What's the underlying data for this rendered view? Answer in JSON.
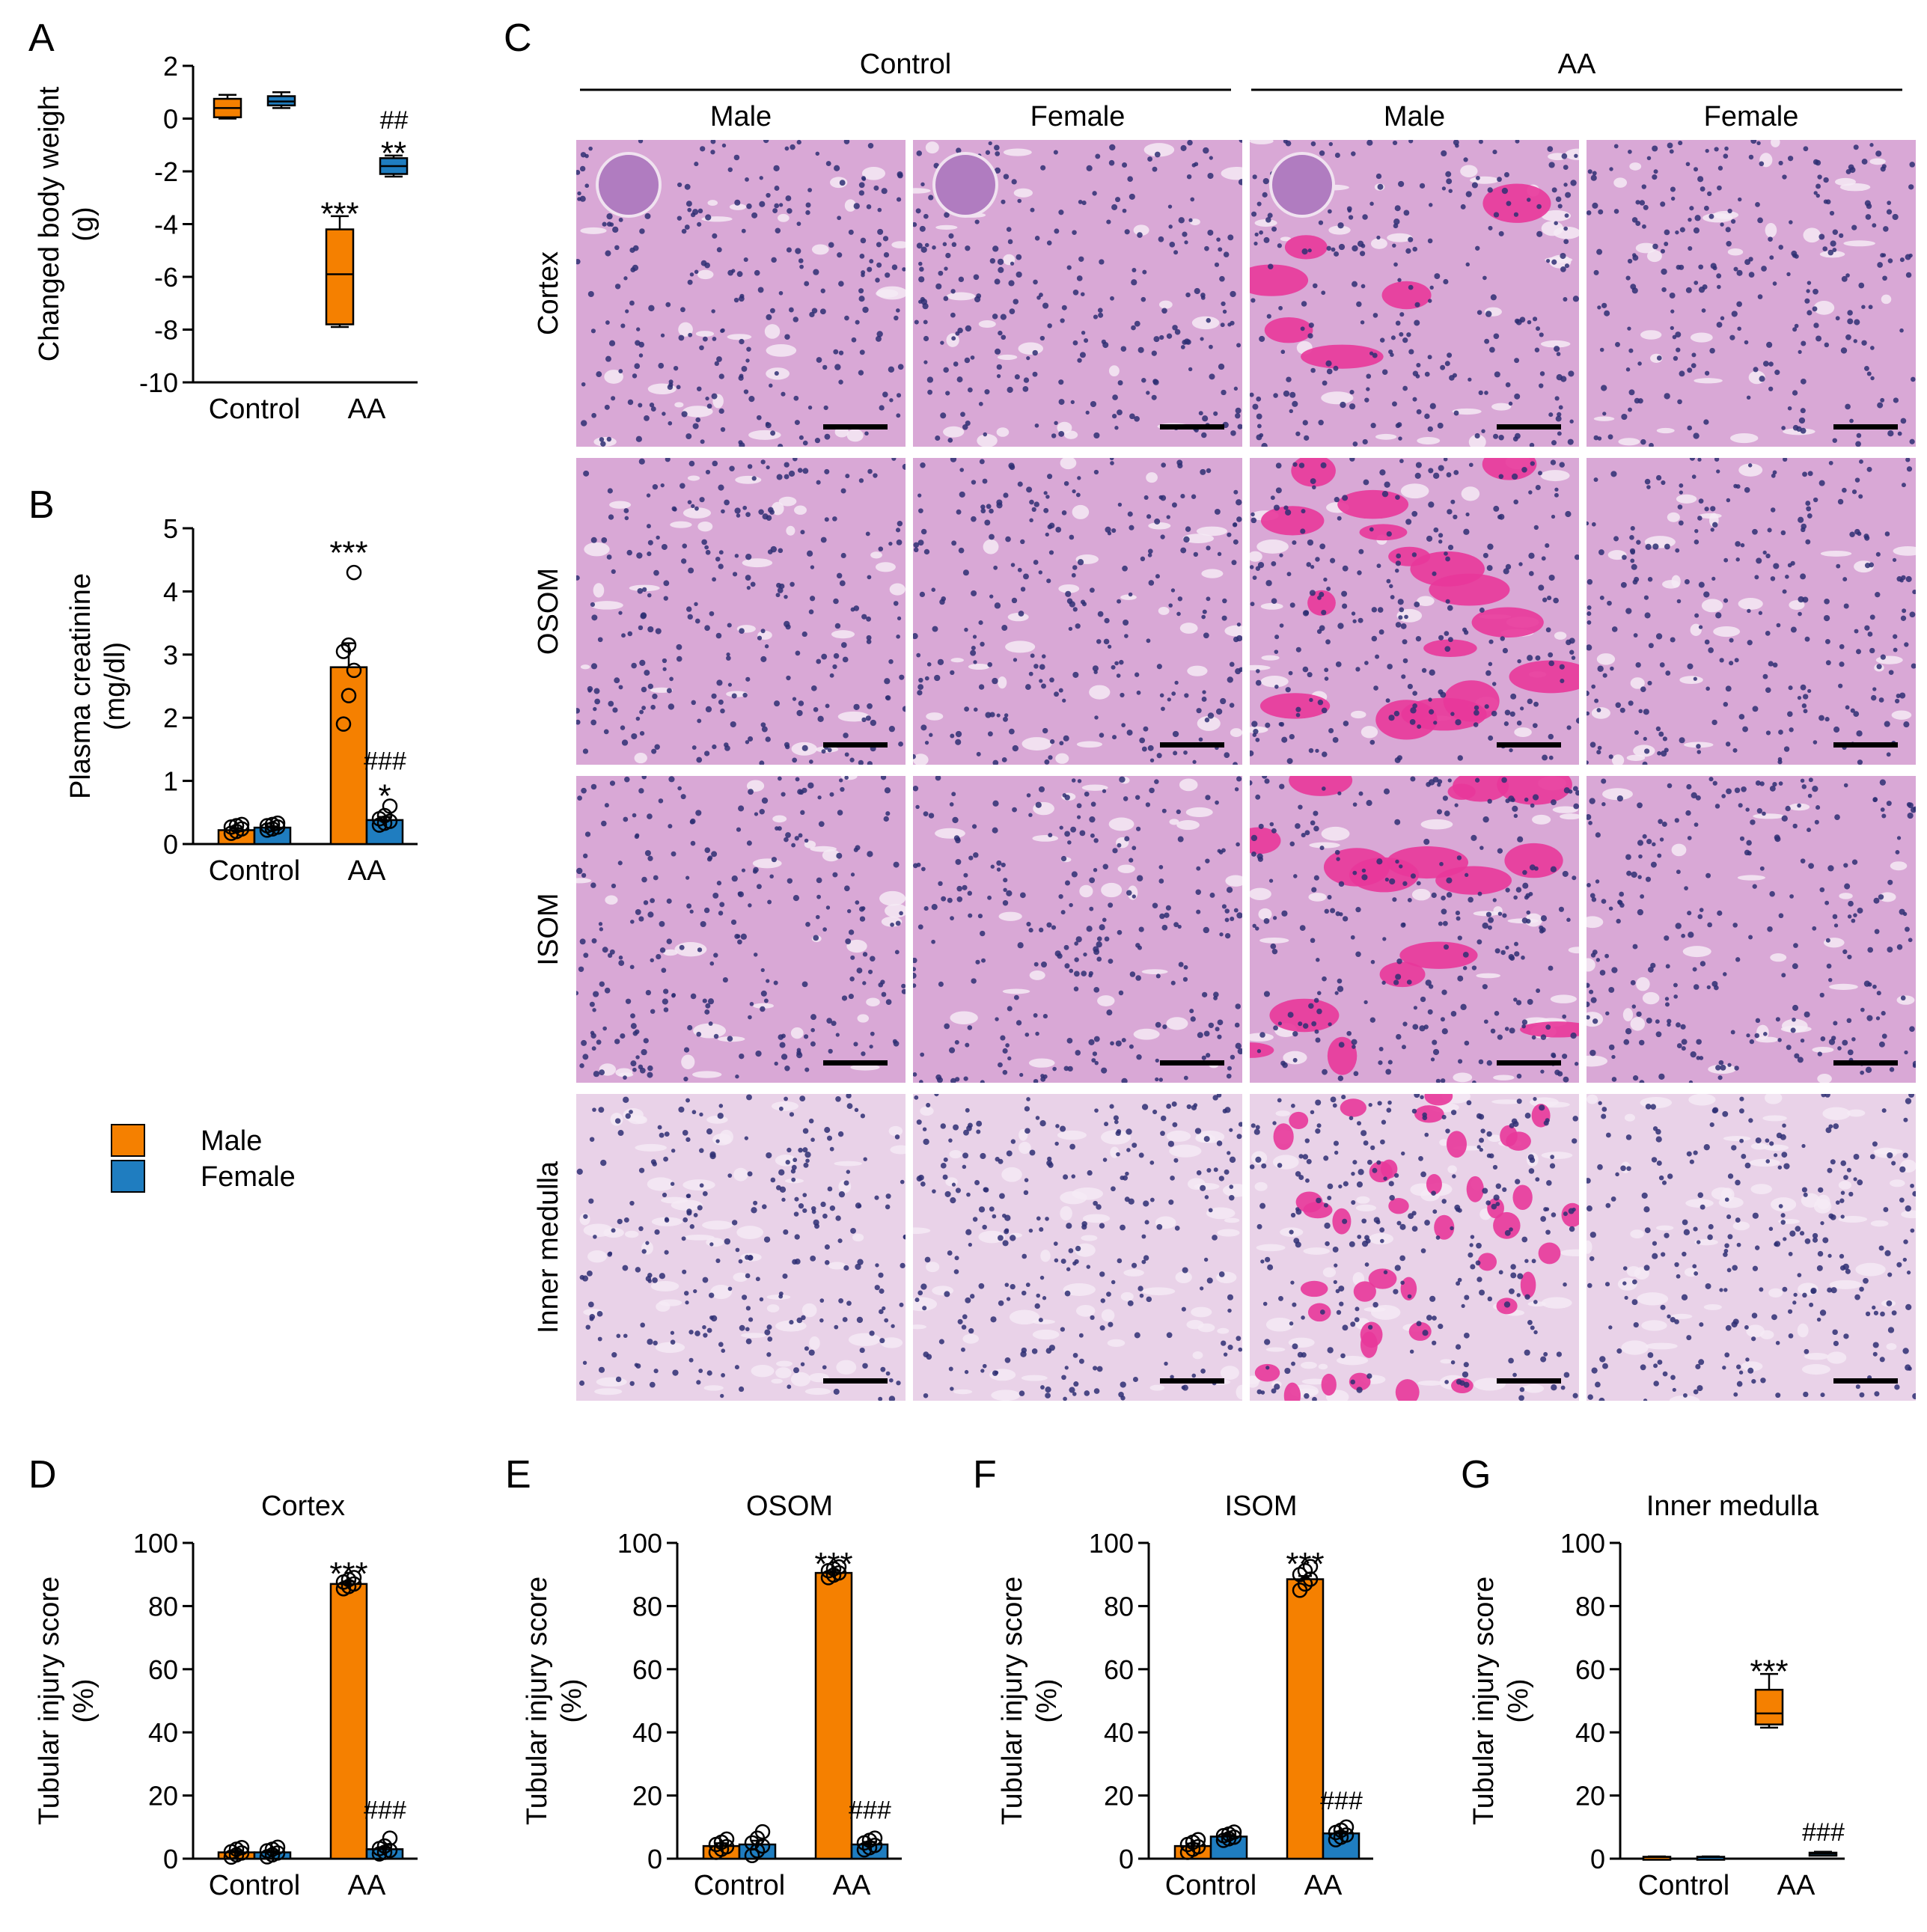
{
  "colors": {
    "male": "#F58000",
    "female": "#1F7DC0",
    "axis": "#000000",
    "he_base": "#d9a8d6",
    "he_pink": "#e8379a",
    "he_nuclei": "#2e2f73"
  },
  "legend": [
    {
      "label": "Male",
      "color": "#F58000"
    },
    {
      "label": "Female",
      "color": "#1F7DC0"
    }
  ],
  "panel_c": {
    "letter": "C",
    "groups": [
      "Control",
      "AA"
    ],
    "sexes": [
      "Male",
      "Female",
      "Male",
      "Female"
    ],
    "regions": [
      "Cortex",
      "OSOM",
      "ISOM",
      "Inner medulla"
    ]
  },
  "chart_data": [
    {
      "id": "A",
      "type": "box",
      "ylabel": [
        "Changed body weight",
        "(g)"
      ],
      "ylim": [
        -10,
        2
      ],
      "yticks": [
        2,
        0,
        -2,
        -4,
        -6,
        -8,
        -10
      ],
      "categories": [
        "Control",
        "AA"
      ],
      "series": [
        {
          "name": "Male",
          "boxes": [
            {
              "min": 0.0,
              "q1": 0.05,
              "median": 0.4,
              "q3": 0.75,
              "max": 0.9
            },
            {
              "min": -7.9,
              "q1": -7.8,
              "median": -5.9,
              "q3": -4.2,
              "max": -3.7
            }
          ]
        },
        {
          "name": "Female",
          "boxes": [
            {
              "min": 0.4,
              "q1": 0.5,
              "median": 0.65,
              "q3": 0.85,
              "max": 1.0
            },
            {
              "min": -2.2,
              "q1": -2.1,
              "median": -1.8,
              "q3": -1.5,
              "max": -1.4
            }
          ]
        }
      ],
      "annotations": [
        {
          "text": "***",
          "series": "Male",
          "category": "AA",
          "y": -3.4
        },
        {
          "text": "**",
          "series": "Female",
          "category": "AA",
          "y": -1.1
        },
        {
          "text": "##",
          "series": "Female",
          "category": "AA",
          "y": -0.1
        }
      ]
    },
    {
      "id": "B",
      "type": "bar",
      "ylabel": [
        "Plasma creatinine",
        "(mg/dl)"
      ],
      "ylim": [
        0,
        5
      ],
      "yticks": [
        5,
        4,
        3,
        2,
        1,
        0
      ],
      "categories": [
        "Control",
        "AA"
      ],
      "series": [
        {
          "name": "Male",
          "values": [
            0.22,
            2.8
          ],
          "error": [
            0.03,
            0.38
          ],
          "points": [
            [
              0.17,
              0.2,
              0.24,
              0.27,
              0.29,
              0.31
            ],
            [
              1.9,
              2.35,
              2.75,
              3.05,
              3.15,
              4.3
            ]
          ]
        },
        {
          "name": "Female",
          "values": [
            0.26,
            0.38
          ],
          "error": [
            0.02,
            0.05
          ],
          "points": [
            [
              0.22,
              0.24,
              0.27,
              0.29,
              0.31,
              0.33
            ],
            [
              0.3,
              0.33,
              0.36,
              0.4,
              0.45,
              0.6
            ]
          ]
        }
      ],
      "annotations": [
        {
          "text": "***",
          "series": "Male",
          "category": "AA",
          "y": 4.7
        },
        {
          "text": "*",
          "series": "Female",
          "category": "AA",
          "y": 0.85
        },
        {
          "text": "###",
          "series": "Female",
          "category": "AA",
          "y": 1.3
        }
      ]
    },
    {
      "id": "D",
      "type": "bar",
      "title": "Cortex",
      "ylabel": [
        "Tubular injury score",
        "(%)"
      ],
      "ylim": [
        0,
        100
      ],
      "yticks": [
        100,
        80,
        60,
        40,
        20,
        0
      ],
      "categories": [
        "Control",
        "AA"
      ],
      "series": [
        {
          "name": "Male",
          "values": [
            2.0,
            87.0
          ],
          "error": [
            0.5,
            0.8
          ],
          "points": [
            [
              0.5,
              1.2,
              1.8,
              2.2,
              3.0,
              3.5
            ],
            [
              85.5,
              86.2,
              87.0,
              87.6,
              88.4,
              89.0
            ]
          ]
        },
        {
          "name": "Female",
          "values": [
            2.0,
            3.0
          ],
          "error": [
            0.5,
            0.6
          ],
          "points": [
            [
              0.6,
              1.2,
              1.8,
              2.5,
              3.0,
              3.6
            ],
            [
              1.5,
              2.0,
              2.6,
              3.2,
              4.0,
              6.5
            ]
          ]
        }
      ],
      "annotations": [
        {
          "text": "***",
          "series": "Male",
          "category": "AA",
          "y": 92
        },
        {
          "text": "###",
          "series": "Female",
          "category": "AA",
          "y": 15
        }
      ]
    },
    {
      "id": "E",
      "type": "bar",
      "title": "OSOM",
      "ylabel": [
        "Tubular injury score",
        "(%)"
      ],
      "ylim": [
        0,
        100
      ],
      "yticks": [
        100,
        80,
        60,
        40,
        20,
        0
      ],
      "categories": [
        "Control",
        "AA"
      ],
      "series": [
        {
          "name": "Male",
          "values": [
            4.0,
            90.5
          ],
          "error": [
            0.9,
            0.6
          ],
          "points": [
            [
              2.0,
              3.0,
              3.8,
              4.5,
              5.2,
              6.2
            ],
            [
              89.0,
              89.8,
              90.5,
              91.2,
              91.8,
              92.4
            ]
          ]
        },
        {
          "name": "Female",
          "values": [
            4.5,
            4.5
          ],
          "error": [
            1.2,
            0.8
          ],
          "points": [
            [
              1.0,
              2.5,
              4.0,
              5.0,
              6.5,
              8.5
            ],
            [
              2.8,
              3.5,
              4.2,
              5.0,
              5.8,
              6.5
            ]
          ]
        }
      ],
      "annotations": [
        {
          "text": "***",
          "series": "Male",
          "category": "AA",
          "y": 95
        },
        {
          "text": "###",
          "series": "Female",
          "category": "AA",
          "y": 15
        }
      ]
    },
    {
      "id": "F",
      "type": "bar",
      "title": "ISOM",
      "ylabel": [
        "Tubular injury score",
        "(%)"
      ],
      "ylim": [
        0,
        100
      ],
      "yticks": [
        100,
        80,
        60,
        40,
        20,
        0
      ],
      "categories": [
        "Control",
        "AA"
      ],
      "series": [
        {
          "name": "Male",
          "values": [
            4.0,
            88.5
          ],
          "error": [
            0.8,
            1.0
          ],
          "points": [
            [
              2.0,
              3.0,
              3.8,
              4.5,
              5.2,
              6.0
            ],
            [
              85.0,
              87.0,
              88.5,
              90.0,
              91.2,
              92.5
            ]
          ]
        },
        {
          "name": "Female",
          "values": [
            7.0,
            8.0
          ],
          "error": [
            0.5,
            0.6
          ],
          "points": [
            [
              5.8,
              6.3,
              6.8,
              7.3,
              7.8,
              8.4
            ],
            [
              6.0,
              6.8,
              7.5,
              8.3,
              9.0,
              10.0
            ]
          ]
        }
      ],
      "annotations": [
        {
          "text": "***",
          "series": "Male",
          "category": "AA",
          "y": 95
        },
        {
          "text": "###",
          "series": "Female",
          "category": "AA",
          "y": 18
        }
      ]
    },
    {
      "id": "G",
      "type": "box",
      "title": "Inner medulla",
      "ylabel": [
        "Tubular injury score",
        "(%)"
      ],
      "ylim": [
        0,
        100
      ],
      "yticks": [
        100,
        80,
        60,
        40,
        20,
        0
      ],
      "categories": [
        "Control",
        "AA"
      ],
      "series": [
        {
          "name": "Male",
          "boxes": [
            {
              "min": 0.3,
              "q1": 0.4,
              "median": 0.5,
              "q3": 0.6,
              "max": 0.7
            },
            {
              "min": 41.5,
              "q1": 42.5,
              "median": 46.0,
              "q3": 53.5,
              "max": 58.5
            }
          ]
        },
        {
          "name": "Female",
          "boxes": [
            {
              "min": 0.3,
              "q1": 0.4,
              "median": 0.5,
              "q3": 0.6,
              "max": 0.7
            },
            {
              "min": 1.0,
              "q1": 1.3,
              "median": 1.6,
              "q3": 1.9,
              "max": 2.2
            }
          ]
        }
      ],
      "annotations": [
        {
          "text": "***",
          "series": "Male",
          "category": "AA",
          "y": 61
        },
        {
          "text": "###",
          "series": "Female",
          "category": "AA",
          "y": 8
        }
      ]
    }
  ]
}
